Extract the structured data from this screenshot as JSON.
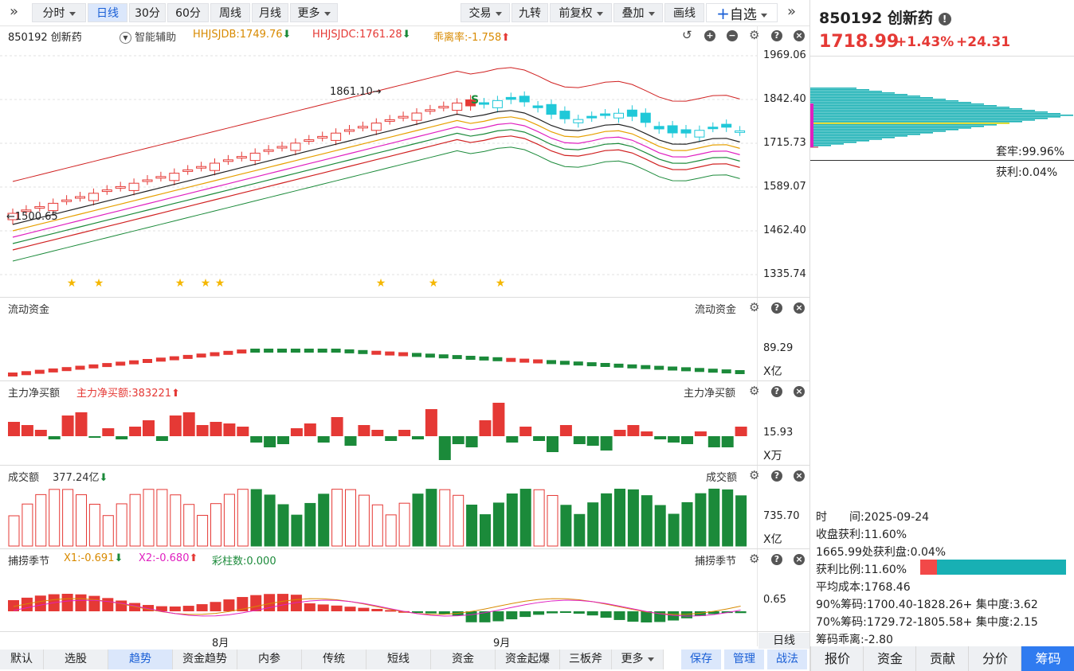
{
  "toolbar": {
    "items": [
      {
        "label": "分时",
        "dropdown": true
      },
      {
        "label": "日线",
        "active": true
      },
      {
        "label": "30分"
      },
      {
        "label": "60分"
      },
      {
        "label": "周线"
      },
      {
        "label": "月线"
      },
      {
        "label": "更多",
        "dropdown": true
      }
    ],
    "right_items": [
      {
        "label": "交易",
        "dropdown": true
      },
      {
        "label": "九转"
      },
      {
        "label": "前复权",
        "dropdown": true
      },
      {
        "label": "叠加",
        "dropdown": true
      },
      {
        "label": "画线"
      }
    ],
    "watchlist_label": "+自选"
  },
  "header": {
    "stock_code_name": "850192 创新药",
    "assist_label": "智能辅助",
    "indicator1": "HHJSJDB:1749.76",
    "indicator2": "HHJSJDC:1761.28",
    "indicator3": "乖离率:-1.758"
  },
  "quote": {
    "code_name": "850192 创新药",
    "price": "1718.99",
    "change_pct": "+1.43%",
    "change_abs": "+24.31"
  },
  "price_axis": [
    "1969.06",
    "1842.40",
    "1715.73",
    "1589.07",
    "1462.40",
    "1335.74"
  ],
  "annotations": {
    "high": "1861.10→",
    "low": "←1500.65",
    "signal": "S"
  },
  "panels": {
    "fund_flow": {
      "title": "流动资金",
      "title_right": "流动资金",
      "value": "89.29",
      "unit": "X亿"
    },
    "main_net": {
      "title": "主力净买额",
      "value_label": "主力净买额:383221",
      "title_right": "主力净买额",
      "value": "15.93",
      "unit": "X万"
    },
    "turnover": {
      "title": "成交额",
      "value_label": "377.24亿",
      "title_right": "成交额",
      "value": "735.70",
      "unit": "X亿"
    },
    "season": {
      "title": "捕捞季节",
      "x1": "X1:-0.691",
      "x2": "X2:-0.680",
      "color_count": "彩柱数:0.000",
      "title_right": "捕捞季节",
      "value": "0.65"
    }
  },
  "x_axis": {
    "labels": [
      "8月",
      "9月"
    ],
    "period": "日线"
  },
  "bottom_tabs": [
    "默认",
    "选股",
    "趋势",
    "资金趋势",
    "内参",
    "传统",
    "短线",
    "资金",
    "资金起爆",
    "三板斧",
    "更多"
  ],
  "bottom_active": "趋势",
  "bottom_right_buttons": [
    "保存",
    "管理",
    "战法"
  ],
  "chip": {
    "trap": "套牢:99.96%",
    "profit": "获利:0.04%",
    "time": "时　　间:2025-09-24",
    "close_profit": "收盘获利:11.60%",
    "profit_at": "1665.99处获利盘:0.04%",
    "profit_ratio": "获利比例:11.60%",
    "avg_cost": "平均成本:1768.46",
    "chip90": "90%筹码:1700.40-1828.26+ 集中度:3.62",
    "chip70": "70%筹码:1729.72-1805.58+ 集中度:2.15",
    "deviation": "筹码乖离:-2.80",
    "profit_fraction": 0.116
  },
  "right_tabs": [
    "报价",
    "资金",
    "贡献",
    "分价",
    "筹码"
  ],
  "right_active": "筹码",
  "colors": {
    "up": "#e53935",
    "down": "#1b8a3a",
    "accent": "#1a5fd6",
    "cyan": "#20c8d8",
    "gold": "#f5b700",
    "magenta": "#e020c0"
  }
}
